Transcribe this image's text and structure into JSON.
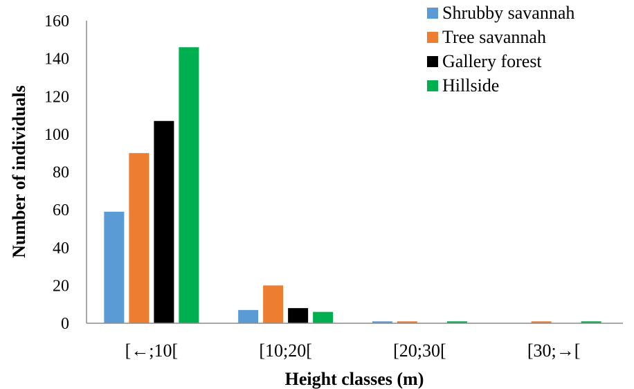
{
  "chart_data": {
    "type": "bar",
    "title": "",
    "xlabel": "Height classes (m)",
    "ylabel": "Number of individuals",
    "categories": [
      "[←;10[",
      "[10;20[",
      "[20;30[",
      "[30;→["
    ],
    "ylim": [
      0,
      160
    ],
    "yticks": [
      0,
      20,
      40,
      60,
      80,
      100,
      120,
      140,
      160
    ],
    "grid": false,
    "legend_position": "top-right",
    "series": [
      {
        "name": "Shrubby savannah",
        "color": "#5B9BD5",
        "values": [
          59,
          7,
          1,
          0
        ]
      },
      {
        "name": "Tree savannah",
        "color": "#ED7D31",
        "values": [
          90,
          20,
          1,
          1
        ]
      },
      {
        "name": "Gallery forest",
        "color": "#000000",
        "values": [
          107,
          8,
          0,
          0
        ]
      },
      {
        "name": "Hillside",
        "color": "#00B050",
        "values": [
          146,
          6,
          1,
          1
        ]
      }
    ]
  }
}
